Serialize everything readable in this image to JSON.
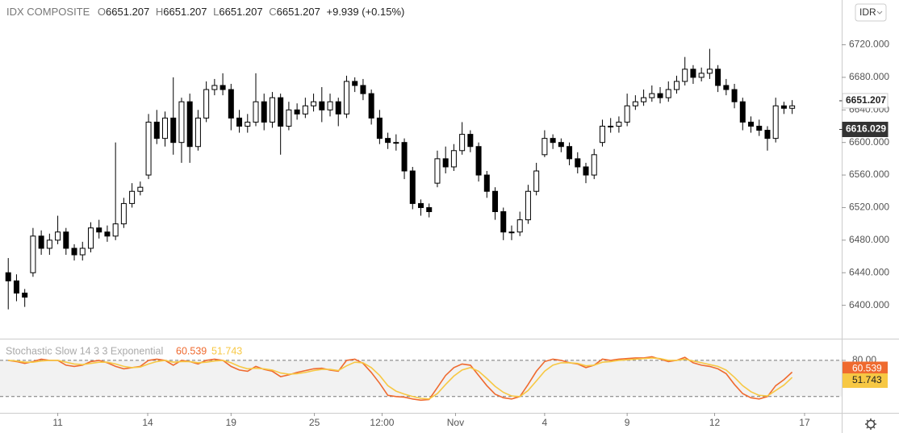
{
  "header": {
    "symbol": "IDX COMPOSITE",
    "o_label": "O",
    "o": "6651.207",
    "h_label": "H",
    "h": "6651.207",
    "l_label": "L",
    "l": "6651.207",
    "c_label": "C",
    "c": "6651.207",
    "change": "+9.939 (+0.15%)",
    "currency": "IDR"
  },
  "chart_data": [
    {
      "type": "candlestick",
      "up_color": "#ffffff",
      "down_color": "#000000",
      "outline_color": "#000000",
      "xlim": [
        -1,
        101
      ],
      "ylim": [
        6359,
        6775
      ],
      "yticks": [
        {
          "value": 6400,
          "label": "6400.000"
        },
        {
          "value": 6440,
          "label": "6440.000"
        },
        {
          "value": 6480,
          "label": "6480.000"
        },
        {
          "value": 6520,
          "label": "6520.000"
        },
        {
          "value": 6560,
          "label": "6560.000"
        },
        {
          "value": 6600,
          "label": "6600.000"
        },
        {
          "value": 6640,
          "label": "6640.000"
        },
        {
          "value": 6680,
          "label": "6680.000"
        },
        {
          "value": 6720,
          "label": "6720.000"
        }
      ],
      "price_markers": [
        {
          "value": 6651.207,
          "label": "6651.207",
          "color": "#ffffff",
          "text_color": "#222222"
        },
        {
          "value": 6616.029,
          "label": "6616.029",
          "color": "#333333",
          "text_color": "#ffffff"
        }
      ],
      "open": [
        6440,
        6430,
        6415,
        6440,
        6485,
        6470,
        6480,
        6490,
        6470,
        6462,
        6470,
        6495,
        6490,
        6485,
        6500,
        6525,
        6540,
        6560,
        6625,
        6605,
        6630,
        6600,
        6650,
        6595,
        6630,
        6665,
        6670,
        6665,
        6630,
        6620,
        6625,
        6650,
        6625,
        6655,
        6620,
        6640,
        6635,
        6645,
        6650,
        6640,
        6650,
        6635,
        6675,
        6670,
        6660,
        6630,
        6605,
        6600,
        6600,
        6565,
        6525,
        6520,
        6550,
        6580,
        6570,
        6590,
        6610,
        6595,
        6560,
        6540,
        6515,
        6490,
        6490,
        6505,
        6540,
        6585,
        6605,
        6600,
        6595,
        6580,
        6570,
        6560,
        6600,
        6620,
        6620,
        6625,
        6645,
        6650,
        6655,
        6660,
        6655,
        6665,
        6675,
        6690,
        6680,
        6685,
        6690,
        6670,
        6665,
        6650,
        6625,
        6620,
        6615,
        6605,
        6645,
        6642
      ],
      "high": [
        6458,
        6438,
        6420,
        6495,
        6492,
        6488,
        6510,
        6495,
        6475,
        6478,
        6502,
        6505,
        6498,
        6600,
        6532,
        6550,
        6552,
        6635,
        6640,
        6638,
        6680,
        6655,
        6660,
        6640,
        6675,
        6678,
        6685,
        6672,
        6640,
        6635,
        6685,
        6660,
        6662,
        6660,
        6650,
        6648,
        6655,
        6660,
        6668,
        6660,
        6655,
        6682,
        6680,
        6678,
        6665,
        6640,
        6612,
        6610,
        6605,
        6570,
        6530,
        6525,
        6590,
        6595,
        6598,
        6625,
        6615,
        6600,
        6565,
        6545,
        6520,
        6498,
        6515,
        6548,
        6575,
        6615,
        6610,
        6605,
        6600,
        6588,
        6575,
        6592,
        6628,
        6630,
        6632,
        6660,
        6658,
        6665,
        6670,
        6668,
        6675,
        6682,
        6705,
        6695,
        6692,
        6715,
        6695,
        6678,
        6672,
        6655,
        6632,
        6628,
        6620,
        6655,
        6650,
        6652
      ],
      "low": [
        6395,
        6405,
        6398,
        6435,
        6462,
        6462,
        6475,
        6462,
        6455,
        6455,
        6465,
        6482,
        6478,
        6480,
        6495,
        6520,
        6535,
        6555,
        6598,
        6595,
        6585,
        6575,
        6575,
        6590,
        6625,
        6658,
        6658,
        6615,
        6612,
        6612,
        6620,
        6615,
        6618,
        6585,
        6615,
        6628,
        6630,
        6638,
        6625,
        6632,
        6620,
        6630,
        6662,
        6652,
        6622,
        6598,
        6592,
        6590,
        6555,
        6518,
        6510,
        6508,
        6545,
        6562,
        6565,
        6585,
        6588,
        6552,
        6532,
        6505,
        6480,
        6480,
        6485,
        6500,
        6535,
        6582,
        6592,
        6588,
        6572,
        6562,
        6550,
        6555,
        6595,
        6612,
        6612,
        6620,
        6640,
        6645,
        6650,
        6648,
        6650,
        6660,
        6670,
        6672,
        6675,
        6678,
        6662,
        6658,
        6642,
        6615,
        6612,
        6608,
        6590,
        6600,
        6635,
        6635
      ],
      "close": [
        6430,
        6415,
        6410,
        6485,
        6470,
        6480,
        6490,
        6470,
        6462,
        6470,
        6495,
        6490,
        6485,
        6500,
        6525,
        6540,
        6545,
        6625,
        6605,
        6630,
        6600,
        6650,
        6595,
        6630,
        6665,
        6670,
        6665,
        6630,
        6620,
        6625,
        6650,
        6625,
        6655,
        6620,
        6640,
        6635,
        6645,
        6650,
        6640,
        6650,
        6635,
        6675,
        6670,
        6660,
        6630,
        6605,
        6600,
        6600,
        6565,
        6525,
        6520,
        6515,
        6580,
        6570,
        6590,
        6610,
        6595,
        6560,
        6540,
        6515,
        6490,
        6490,
        6505,
        6540,
        6565,
        6605,
        6600,
        6595,
        6580,
        6570,
        6560,
        6585,
        6620,
        6620,
        6625,
        6645,
        6650,
        6655,
        6660,
        6655,
        6665,
        6675,
        6690,
        6680,
        6685,
        6690,
        6670,
        6665,
        6650,
        6625,
        6620,
        6615,
        6605,
        6645,
        6642,
        6645
      ]
    },
    {
      "type": "line",
      "title": "Stochastic Slow 14 3 3 Exponential",
      "xlim": [
        -1,
        101
      ],
      "ylim": [
        -7,
        116
      ],
      "yticks": [
        {
          "value": 80,
          "label": "80.00"
        }
      ],
      "band": [
        20,
        80
      ],
      "xticks": [
        {
          "value": 6,
          "label": "11"
        },
        {
          "value": 16.9,
          "label": "14"
        },
        {
          "value": 27,
          "label": "19"
        },
        {
          "value": 37.1,
          "label": "25"
        },
        {
          "value": 45.3,
          "label": "12:00"
        },
        {
          "value": 54.2,
          "label": "Nov"
        },
        {
          "value": 65,
          "label": "4"
        },
        {
          "value": 75,
          "label": "9"
        },
        {
          "value": 85.6,
          "label": "12"
        },
        {
          "value": 96.5,
          "label": "17"
        }
      ],
      "series": [
        {
          "name": "60.539",
          "color": "#ef6a2f",
          "text_color": "#ffffff",
          "values": [
            80,
            78,
            75,
            78,
            82,
            80,
            80,
            72,
            70,
            72,
            78,
            80,
            76,
            70,
            66,
            68,
            70,
            80,
            82,
            80,
            72,
            80,
            78,
            74,
            80,
            82,
            80,
            70,
            64,
            62,
            70,
            65,
            62,
            53,
            56,
            60,
            63,
            66,
            67,
            64,
            62,
            80,
            82,
            75,
            60,
            42,
            22,
            20,
            19,
            16,
            14,
            15,
            35,
            55,
            68,
            74,
            72,
            55,
            38,
            24,
            18,
            16,
            20,
            40,
            62,
            78,
            82,
            80,
            76,
            74,
            68,
            72,
            82,
            80,
            82,
            83,
            84,
            84,
            86,
            82,
            78,
            80,
            85,
            76,
            72,
            70,
            66,
            58,
            40,
            25,
            18,
            16,
            20,
            38,
            48,
            60.539
          ]
        },
        {
          "name": "51.743",
          "color": "#f7c844",
          "text_color": "#222222",
          "values": [
            80,
            79,
            77,
            77,
            79,
            80,
            80,
            77,
            74,
            73,
            75,
            77,
            77,
            74,
            70,
            68,
            69,
            74,
            78,
            80,
            77,
            78,
            78,
            76,
            77,
            79,
            80,
            76,
            70,
            66,
            67,
            66,
            64,
            59,
            57,
            58,
            60,
            63,
            65,
            65,
            63,
            71,
            77,
            76,
            68,
            55,
            38,
            29,
            24,
            20,
            17,
            16,
            25,
            40,
            54,
            64,
            68,
            62,
            50,
            37,
            27,
            21,
            20,
            30,
            46,
            62,
            72,
            76,
            76,
            75,
            71,
            72,
            77,
            78,
            80,
            81,
            82,
            83,
            84,
            83,
            80,
            80,
            82,
            79,
            76,
            73,
            70,
            64,
            52,
            38,
            28,
            22,
            21,
            30,
            39,
            51.743
          ]
        }
      ]
    }
  ]
}
